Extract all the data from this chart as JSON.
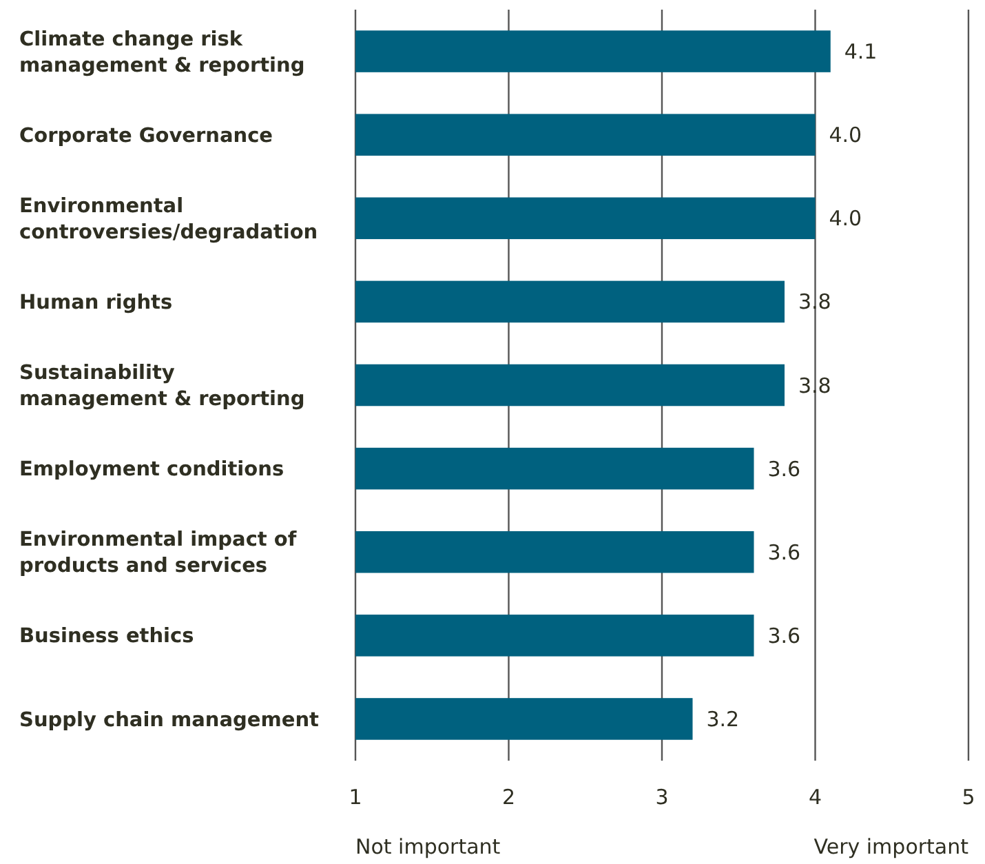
{
  "chart_data": {
    "type": "bar",
    "orientation": "horizontal",
    "categories": [
      "Climate change risk management & reporting",
      "Corporate Governance",
      "Environmental controversies/degradation",
      "Human rights",
      "Sustainability management & reporting",
      "Employment conditions",
      "Environmental impact of products and services",
      "Business ethics",
      "Supply chain management"
    ],
    "base": [
      1,
      1,
      1,
      1,
      1,
      1,
      1,
      1,
      1
    ],
    "values": [
      3.1,
      3.0,
      3.0,
      2.8,
      2.8,
      2.6,
      2.6,
      2.6,
      2.2
    ],
    "value_labels": [
      "4.1",
      "4.0",
      "4.0",
      "3.8",
      "3.8",
      "3.6",
      "3.6",
      "3.6",
      "3.2"
    ],
    "color": "#00617f",
    "xlim": [
      1,
      5
    ],
    "xticks": [
      1,
      2,
      3,
      4,
      5
    ],
    "grid": "x",
    "annotations": [
      "Not important",
      "Very important"
    ]
  }
}
